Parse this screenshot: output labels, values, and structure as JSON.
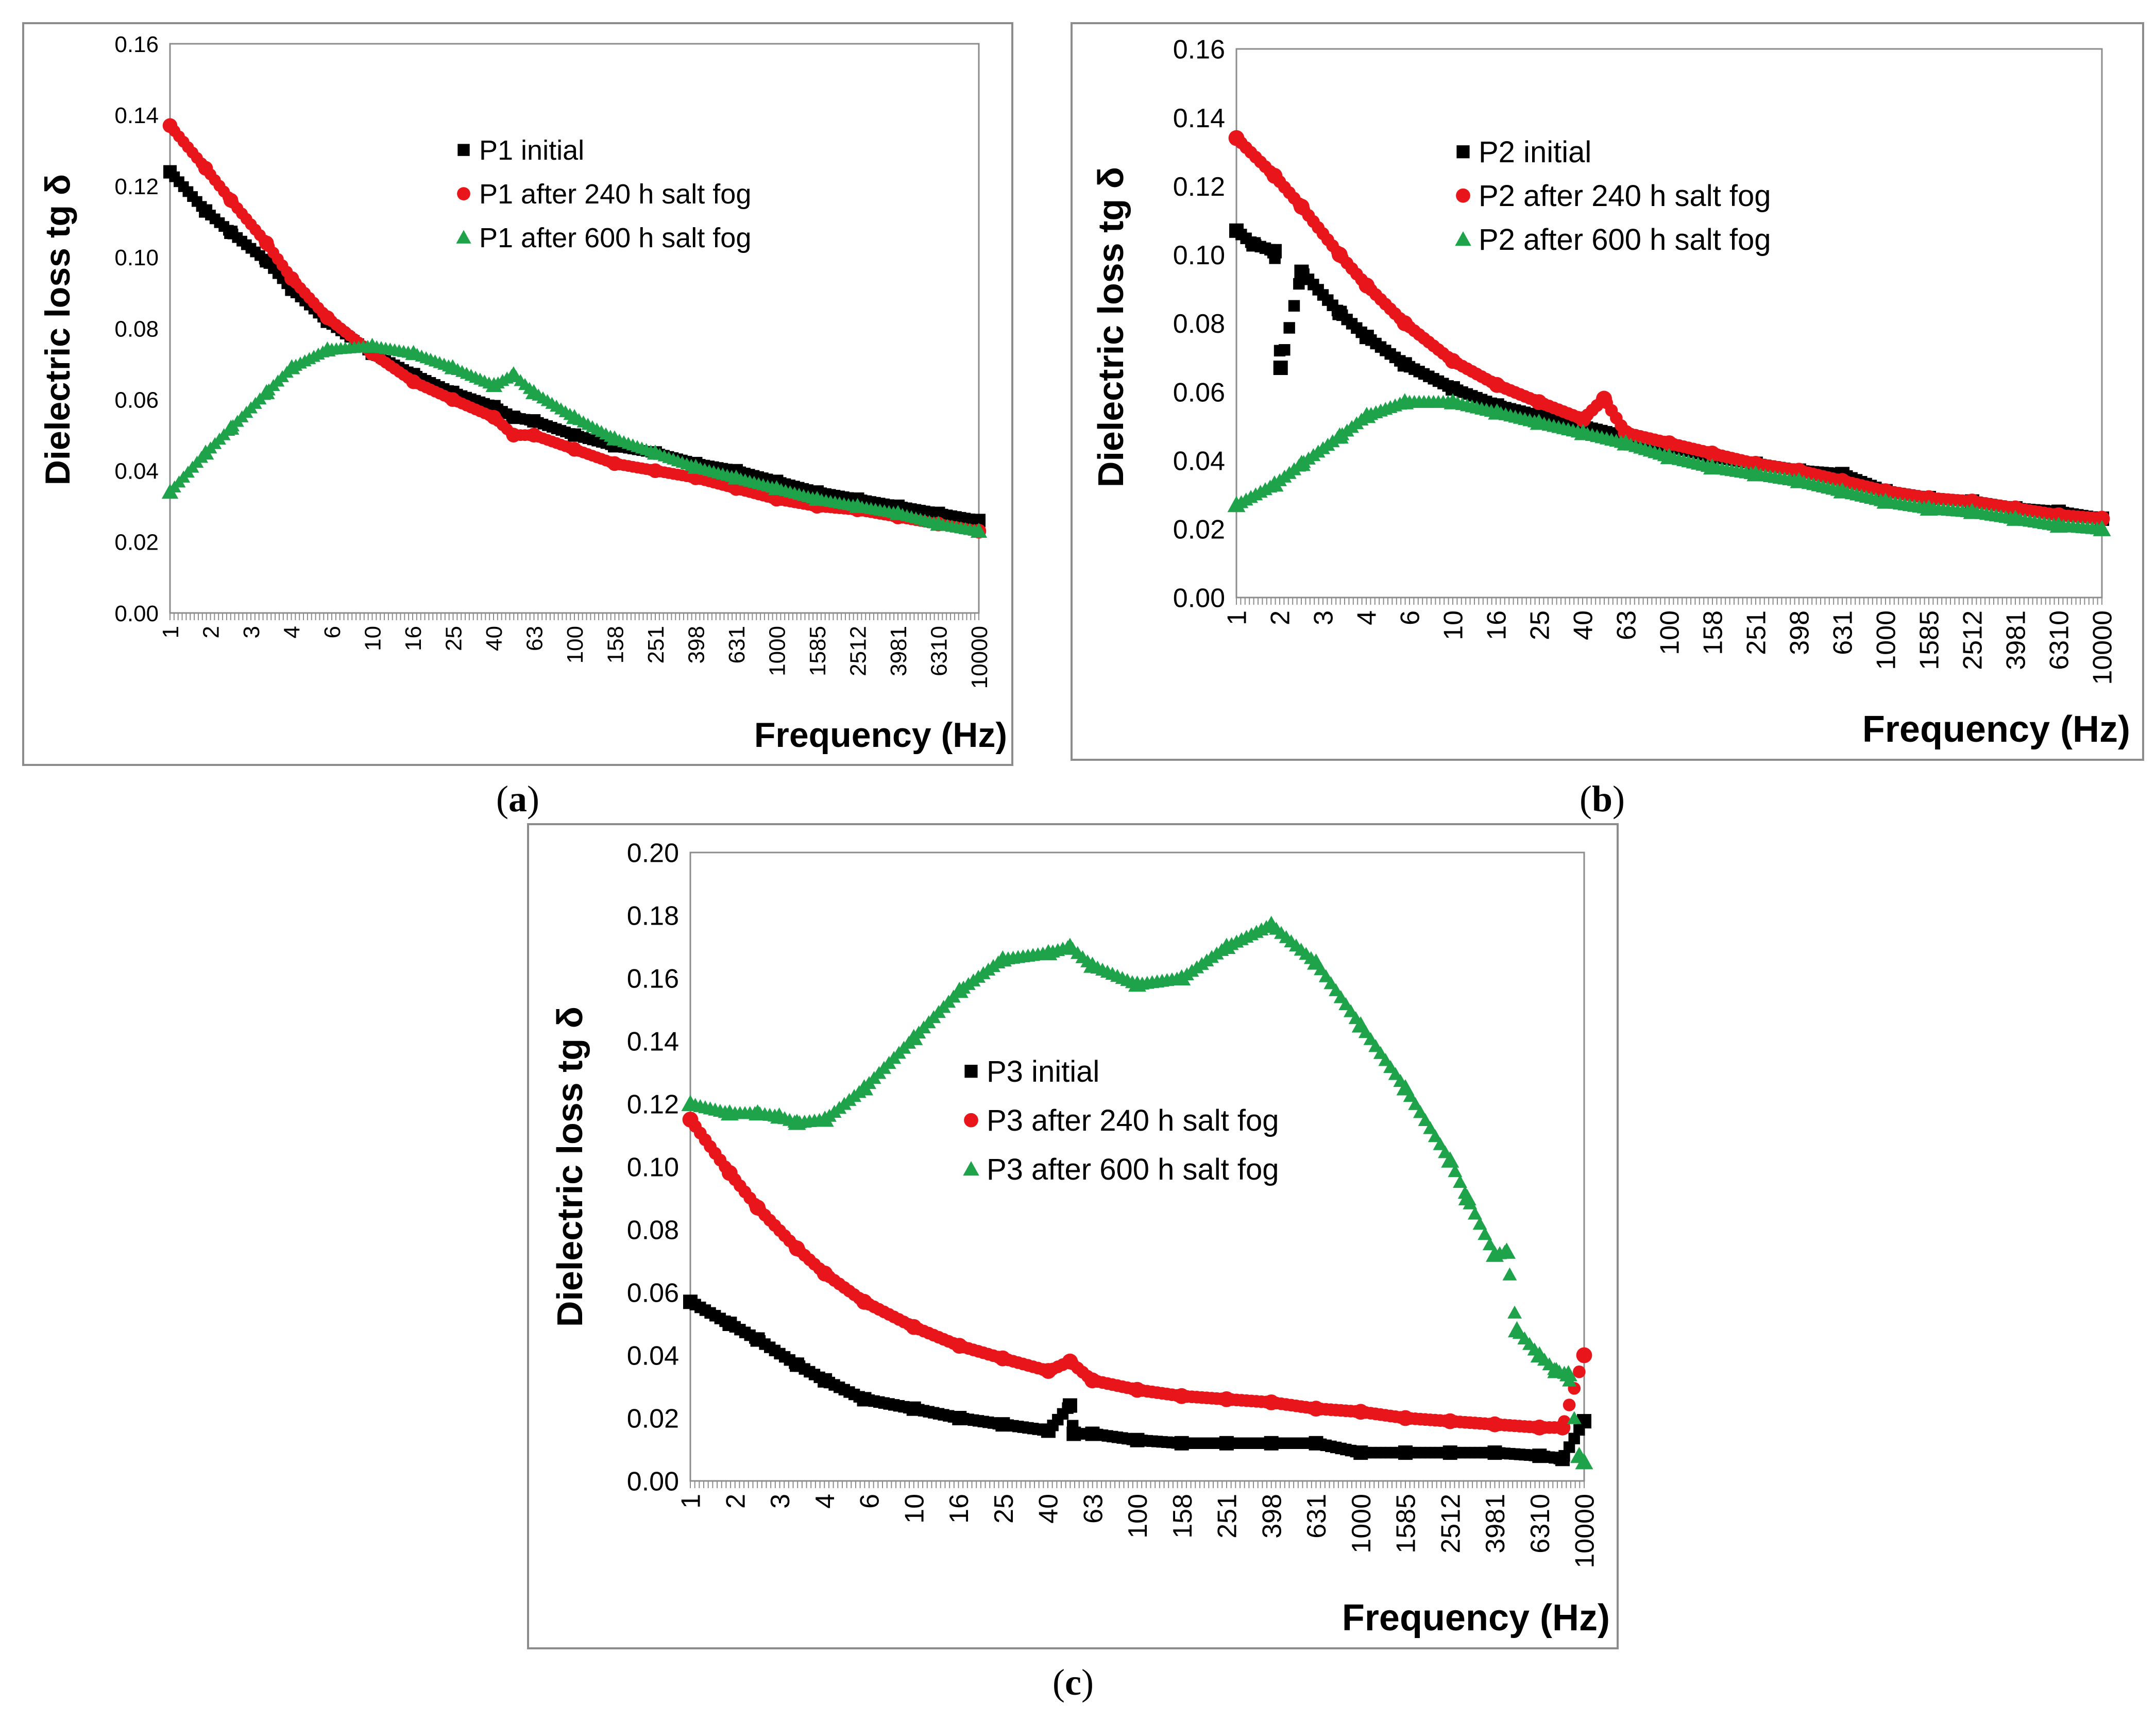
{
  "chart_data": [
    {
      "panel_label": "(a)",
      "panel_letter": "a",
      "type": "scatter",
      "xscale": "log",
      "xlabel": "Frequency (Hz)",
      "ylabel": "Dielectric loss tg δ",
      "ylim": [
        0,
        0.16
      ],
      "yticks": [
        0,
        0.02,
        0.04,
        0.06,
        0.08,
        0.1,
        0.12,
        0.14,
        0.16
      ],
      "ytick_labels": [
        "0.00",
        "0.02",
        "0.04",
        "0.06",
        "0.08",
        "0.10",
        "0.12",
        "0.14",
        "0.16"
      ],
      "xlim": [
        1,
        10000
      ],
      "xtick_labels": [
        "1",
        "2",
        "3",
        "4",
        "6",
        "10",
        "16",
        "25",
        "40",
        "63",
        "100",
        "158",
        "251",
        "398",
        "631",
        "1000",
        "1585",
        "2512",
        "3981",
        "6310",
        "10000"
      ],
      "legend_position": "top-center",
      "series": [
        {
          "name": "P1 initial",
          "marker": "square",
          "color": "#000000",
          "x": [
            1,
            1.5,
            2,
            3,
            4,
            6,
            10,
            16,
            25,
            40,
            50,
            63,
            100,
            158,
            251,
            398,
            631,
            1000,
            1585,
            2512,
            3981,
            6310,
            10000
          ],
          "y": [
            0.124,
            0.113,
            0.107,
            0.099,
            0.091,
            0.082,
            0.073,
            0.067,
            0.062,
            0.058,
            0.055,
            0.054,
            0.05,
            0.047,
            0.045,
            0.042,
            0.04,
            0.037,
            0.034,
            0.032,
            0.03,
            0.028,
            0.026
          ]
        },
        {
          "name": "P1 after 240 h salt fog",
          "marker": "circle",
          "color": "#e8151b",
          "x": [
            1,
            1.5,
            2,
            3,
            4,
            6,
            10,
            16,
            25,
            40,
            50,
            63,
            100,
            158,
            251,
            398,
            631,
            1000,
            1585,
            2512,
            3981,
            6310,
            10000
          ],
          "y": [
            0.137,
            0.125,
            0.116,
            0.104,
            0.094,
            0.083,
            0.073,
            0.065,
            0.06,
            0.055,
            0.05,
            0.05,
            0.046,
            0.042,
            0.04,
            0.038,
            0.035,
            0.032,
            0.03,
            0.029,
            0.027,
            0.025,
            0.023
          ]
        },
        {
          "name": "P1 after 600 h salt fog",
          "marker": "triangle",
          "color": "#1fa34a",
          "x": [
            1,
            1.5,
            2,
            3,
            4,
            6,
            10,
            16,
            25,
            40,
            50,
            63,
            100,
            158,
            251,
            398,
            631,
            1000,
            1585,
            2512,
            3981,
            6310,
            10000
          ],
          "y": [
            0.034,
            0.045,
            0.052,
            0.062,
            0.069,
            0.074,
            0.075,
            0.073,
            0.069,
            0.064,
            0.067,
            0.062,
            0.055,
            0.049,
            0.045,
            0.041,
            0.038,
            0.035,
            0.032,
            0.03,
            0.028,
            0.025,
            0.023
          ]
        }
      ]
    },
    {
      "panel_label": "(b)",
      "panel_letter": "b",
      "type": "scatter",
      "xscale": "log",
      "xlabel": "Frequency (Hz)",
      "ylabel": "Dielectric loss tg δ",
      "ylim": [
        0,
        0.16
      ],
      "yticks": [
        0,
        0.02,
        0.04,
        0.06,
        0.08,
        0.1,
        0.12,
        0.14,
        0.16
      ],
      "ytick_labels": [
        "0.00",
        "0.02",
        "0.04",
        "0.06",
        "0.08",
        "0.10",
        "0.12",
        "0.14",
        "0.16"
      ],
      "xlim": [
        1,
        10000
      ],
      "xtick_labels": [
        "1",
        "2",
        "3",
        "4",
        "6",
        "10",
        "16",
        "25",
        "40",
        "63",
        "100",
        "158",
        "251",
        "398",
        "631",
        "1000",
        "1585",
        "2512",
        "3981",
        "6310",
        "10000"
      ],
      "legend_position": "top-center",
      "series": [
        {
          "name": "P2 initial",
          "marker": "square",
          "color": "#000000",
          "x": [
            1,
            1.2,
            1.5,
            1.6,
            2,
            3,
            4,
            6,
            10,
            16,
            25,
            40,
            63,
            100,
            158,
            251,
            398,
            631,
            1000,
            1585,
            2512,
            3981,
            6310,
            10000
          ],
          "y": [
            0.107,
            0.103,
            0.101,
            0.067,
            0.095,
            0.083,
            0.076,
            0.068,
            0.061,
            0.056,
            0.053,
            0.05,
            0.047,
            0.044,
            0.041,
            0.039,
            0.037,
            0.036,
            0.031,
            0.029,
            0.028,
            0.026,
            0.025,
            0.023
          ]
        },
        {
          "name": "P2 after 240 h salt fog",
          "marker": "circle",
          "color": "#e8151b",
          "x": [
            1,
            1.5,
            2,
            3,
            4,
            6,
            10,
            16,
            25,
            40,
            50,
            63,
            100,
            158,
            251,
            398,
            631,
            1000,
            1585,
            2512,
            3981,
            6310,
            10000
          ],
          "y": [
            0.134,
            0.123,
            0.114,
            0.1,
            0.091,
            0.08,
            0.069,
            0.062,
            0.057,
            0.052,
            0.058,
            0.048,
            0.045,
            0.042,
            0.039,
            0.037,
            0.034,
            0.031,
            0.029,
            0.028,
            0.026,
            0.024,
            0.023
          ]
        },
        {
          "name": "P2 after 600 h salt fog",
          "marker": "triangle",
          "color": "#1fa34a",
          "x": [
            1,
            1.5,
            2,
            3,
            4,
            6,
            10,
            16,
            25,
            40,
            63,
            100,
            158,
            251,
            398,
            631,
            1000,
            1585,
            2512,
            3981,
            6310,
            10000
          ],
          "y": [
            0.027,
            0.033,
            0.039,
            0.047,
            0.053,
            0.057,
            0.057,
            0.054,
            0.051,
            0.048,
            0.045,
            0.041,
            0.038,
            0.036,
            0.034,
            0.031,
            0.028,
            0.026,
            0.025,
            0.023,
            0.021,
            0.02
          ]
        }
      ]
    },
    {
      "panel_label": "(c)",
      "panel_letter": "c",
      "type": "scatter",
      "xscale": "log",
      "xlabel": "Frequency (Hz)",
      "ylabel": "Dielectric loss tg δ",
      "ylim": [
        0,
        0.2
      ],
      "yticks": [
        0,
        0.02,
        0.04,
        0.06,
        0.08,
        0.1,
        0.12,
        0.14,
        0.16,
        0.18,
        0.2
      ],
      "ytick_labels": [
        "0.00",
        "0.02",
        "0.04",
        "0.06",
        "0.08",
        "0.10",
        "0.12",
        "0.14",
        "0.16",
        "0.18",
        "0.20"
      ],
      "xlim": [
        1,
        10000
      ],
      "xtick_labels": [
        "1",
        "2",
        "3",
        "4",
        "6",
        "10",
        "16",
        "25",
        "40",
        "63",
        "100",
        "158",
        "251",
        "398",
        "631",
        "1000",
        "1585",
        "2512",
        "3981",
        "6310",
        "10000"
      ],
      "legend_position": "center",
      "series": [
        {
          "name": "P3 initial",
          "marker": "square",
          "color": "#000000",
          "x": [
            1,
            1.5,
            2,
            3,
            4,
            6,
            10,
            16,
            25,
            40,
            50,
            52,
            63,
            100,
            158,
            251,
            398,
            631,
            1000,
            1585,
            2512,
            3981,
            6310,
            8000,
            10000
          ],
          "y": [
            0.057,
            0.05,
            0.045,
            0.037,
            0.032,
            0.026,
            0.023,
            0.02,
            0.018,
            0.016,
            0.024,
            0.015,
            0.015,
            0.013,
            0.012,
            0.012,
            0.012,
            0.012,
            0.009,
            0.009,
            0.009,
            0.009,
            0.008,
            0.007,
            0.019
          ]
        },
        {
          "name": "P3 after 240 h salt fog",
          "marker": "circle",
          "color": "#e8151b",
          "x": [
            1,
            1.5,
            2,
            3,
            4,
            6,
            10,
            16,
            25,
            40,
            50,
            63,
            100,
            158,
            251,
            398,
            631,
            1000,
            1585,
            2512,
            3981,
            6310,
            8000,
            10000
          ],
          "y": [
            0.115,
            0.098,
            0.087,
            0.074,
            0.066,
            0.057,
            0.049,
            0.043,
            0.039,
            0.035,
            0.038,
            0.032,
            0.029,
            0.027,
            0.026,
            0.025,
            0.023,
            0.022,
            0.02,
            0.019,
            0.018,
            0.017,
            0.017,
            0.04
          ]
        },
        {
          "name": "P3 after 600 h salt fog",
          "marker": "triangle",
          "color": "#1fa34a",
          "x": [
            1,
            1.5,
            2,
            2.5,
            3,
            4,
            6,
            10,
            16,
            25,
            40,
            50,
            63,
            100,
            158,
            251,
            398,
            631,
            1000,
            1585,
            2512,
            3000,
            3981,
            4500,
            5000,
            6310,
            7500,
            8500,
            9500,
            10000
          ],
          "y": [
            0.12,
            0.117,
            0.117,
            0.116,
            0.114,
            0.115,
            0.125,
            0.141,
            0.156,
            0.166,
            0.168,
            0.17,
            0.164,
            0.158,
            0.16,
            0.17,
            0.177,
            0.165,
            0.145,
            0.125,
            0.102,
            0.09,
            0.072,
            0.073,
            0.048,
            0.04,
            0.035,
            0.034,
            0.008,
            0.006
          ]
        }
      ]
    }
  ]
}
